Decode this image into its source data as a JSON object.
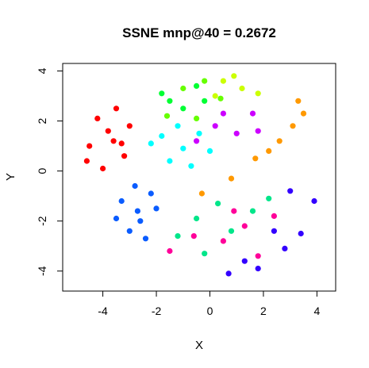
{
  "chart_data": {
    "type": "scatter",
    "title": "SSNE mnp@40 = 0.2672",
    "xlabel": "X",
    "ylabel": "Y",
    "xlim": [
      -5.5,
      4.7
    ],
    "ylim": [
      -4.8,
      4.3
    ],
    "xticks": [
      -4,
      -2,
      0,
      2,
      4
    ],
    "yticks": [
      -4,
      -2,
      0,
      2,
      4
    ],
    "xtick_labels": [
      "-4",
      "-2",
      "0",
      "2",
      "4"
    ],
    "ytick_labels": [
      "-4",
      "-2",
      "0",
      "2",
      "4"
    ],
    "grid": false,
    "legend": "none",
    "series": [
      {
        "color": "#ff0000",
        "values": [
          [
            -3.6,
            1.2
          ],
          [
            -4.5,
            1.0
          ],
          [
            -4.2,
            2.1
          ],
          [
            -3.2,
            0.6
          ],
          [
            -4.0,
            0.1
          ],
          [
            -3.0,
            1.8
          ],
          [
            -4.6,
            0.4
          ],
          [
            -3.5,
            2.5
          ],
          [
            -3.8,
            1.6
          ],
          [
            -3.3,
            1.1
          ]
        ]
      },
      {
        "color": "#0a5cff",
        "values": [
          [
            -2.7,
            -1.6
          ],
          [
            -3.3,
            -1.2
          ],
          [
            -2.2,
            -0.9
          ],
          [
            -3.0,
            -2.4
          ],
          [
            -2.4,
            -2.7
          ],
          [
            -3.5,
            -1.9
          ],
          [
            -2.0,
            -1.5
          ],
          [
            -2.8,
            -0.6
          ],
          [
            -2.6,
            -2.0
          ]
        ]
      },
      {
        "color": "#00ffff",
        "values": [
          [
            -1.8,
            1.4
          ],
          [
            -1.0,
            0.9
          ],
          [
            -0.4,
            1.5
          ],
          [
            -1.5,
            0.4
          ],
          [
            -0.7,
            0.2
          ],
          [
            -2.2,
            1.1
          ],
          [
            0.0,
            0.8
          ],
          [
            -1.2,
            1.8
          ]
        ]
      },
      {
        "color": "#00ff33",
        "values": [
          [
            -1.5,
            2.8
          ],
          [
            -0.5,
            3.4
          ],
          [
            -1.0,
            2.5
          ],
          [
            -1.8,
            3.1
          ],
          [
            -0.2,
            2.8
          ]
        ]
      },
      {
        "color": "#66ff00",
        "values": [
          [
            -1.0,
            3.3
          ],
          [
            -0.2,
            3.6
          ],
          [
            -1.6,
            2.2
          ],
          [
            0.4,
            2.9
          ],
          [
            -0.5,
            2.1
          ]
        ]
      },
      {
        "color": "#ccff00",
        "values": [
          [
            0.5,
            3.6
          ],
          [
            1.2,
            3.3
          ],
          [
            0.2,
            3.0
          ],
          [
            1.8,
            3.1
          ],
          [
            0.9,
            3.8
          ]
        ]
      },
      {
        "color": "#cc00ff",
        "values": [
          [
            0.2,
            1.8
          ],
          [
            1.0,
            1.5
          ],
          [
            -0.5,
            1.2
          ],
          [
            1.6,
            2.3
          ],
          [
            0.5,
            2.3
          ],
          [
            1.8,
            1.6
          ]
        ]
      },
      {
        "color": "#ff9900",
        "values": [
          [
            3.3,
            2.8
          ],
          [
            3.1,
            1.8
          ],
          [
            2.6,
            1.2
          ],
          [
            1.7,
            0.5
          ],
          [
            0.8,
            -0.3
          ],
          [
            -0.3,
            -0.9
          ],
          [
            2.2,
            0.8
          ],
          [
            3.5,
            2.3
          ]
        ]
      },
      {
        "color": "#00e68a",
        "values": [
          [
            -0.5,
            -1.9
          ],
          [
            0.8,
            -2.4
          ],
          [
            1.6,
            -1.6
          ],
          [
            -0.2,
            -3.3
          ],
          [
            0.3,
            -1.3
          ],
          [
            2.2,
            -1.1
          ],
          [
            -1.2,
            -2.6
          ]
        ]
      },
      {
        "color": "#ff0099",
        "values": [
          [
            -1.5,
            -3.2
          ],
          [
            0.5,
            -2.8
          ],
          [
            1.3,
            -2.2
          ],
          [
            2.4,
            -1.8
          ],
          [
            -0.6,
            -2.6
          ],
          [
            1.8,
            -3.4
          ],
          [
            0.9,
            -1.6
          ]
        ]
      },
      {
        "color": "#3300ff",
        "values": [
          [
            2.8,
            -3.1
          ],
          [
            3.4,
            -2.5
          ],
          [
            1.8,
            -3.9
          ],
          [
            3.9,
            -1.2
          ],
          [
            0.7,
            -4.1
          ],
          [
            2.4,
            -2.4
          ],
          [
            3.0,
            -0.8
          ],
          [
            1.3,
            -3.6
          ]
        ]
      }
    ]
  }
}
